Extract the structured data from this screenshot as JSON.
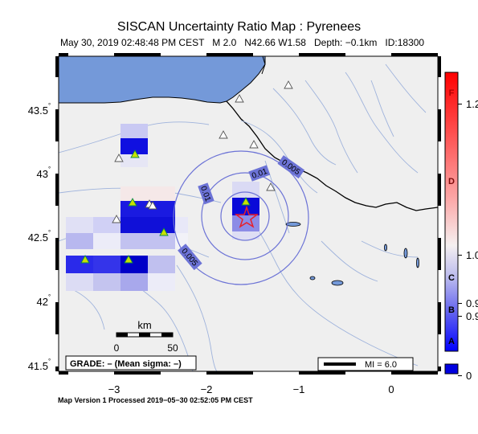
{
  "title": "SISCAN Uncertainty Ratio Map : Pyrenees",
  "subtitle": {
    "date": "May 30, 2019 02:48:48 PM CEST",
    "magnitude": "M 2.0",
    "location": "N42.66 W1.58",
    "depth": "Depth: −0.1km",
    "id": "ID:18300"
  },
  "axes": {
    "lat_ticks": [
      "43.5",
      "43",
      "42.5",
      "42",
      "41.5"
    ],
    "lon_ticks": [
      "−3",
      "−2",
      "−1",
      "0"
    ]
  },
  "contours": [
    {
      "label": "0.005"
    },
    {
      "label": "0.01"
    },
    {
      "label": "0.01"
    },
    {
      "label": "0.005"
    }
  ],
  "scale_bar": {
    "title": "km",
    "left": "0",
    "right": "50"
  },
  "grade_box": "GRADE: – (Mean sigma: –)",
  "mi_box": "MI = 6.0",
  "colorbar": {
    "letters": [
      "F",
      "D",
      "C",
      "B",
      "A"
    ],
    "values": [
      "1.2",
      "1.0",
      "0.9",
      "0.9",
      "0"
    ]
  },
  "footer": "Map Version 1 Processed 2019−05−30 02:52:05 PM CEST",
  "colors": {
    "sea": "#7499d9",
    "land": "#efefef",
    "rivers": "#9fb3dc",
    "contour": "#6c73d6",
    "epicenter": "#e8202a",
    "station": "#c8e000"
  },
  "icons": {
    "epicenter": "star-icon",
    "station": "triangle-icon"
  }
}
